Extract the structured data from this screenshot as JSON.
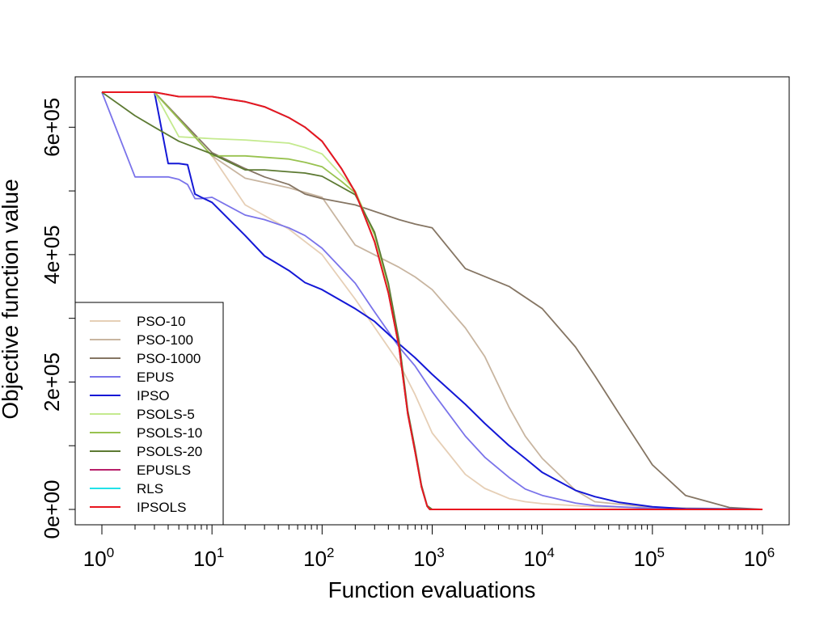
{
  "chart_data": {
    "type": "line",
    "title": "",
    "xlabel": "Function evaluations",
    "ylabel": "Objective function value",
    "xscale": "log10",
    "xlim": [
      1,
      1000000
    ],
    "ylim": [
      0,
      655000
    ],
    "xticks": [
      {
        "base": "10",
        "exp": "0",
        "value": 1
      },
      {
        "base": "10",
        "exp": "1",
        "value": 10
      },
      {
        "base": "10",
        "exp": "2",
        "value": 100
      },
      {
        "base": "10",
        "exp": "3",
        "value": 1000
      },
      {
        "base": "10",
        "exp": "4",
        "value": 10000
      },
      {
        "base": "10",
        "exp": "5",
        "value": 100000
      },
      {
        "base": "10",
        "exp": "6",
        "value": 1000000
      }
    ],
    "yticks": [
      {
        "label": "0e+00",
        "value": 0
      },
      {
        "label": "2e+05",
        "value": 200000
      },
      {
        "label": "4e+05",
        "value": 400000
      },
      {
        "label": "6e+05",
        "value": 600000
      }
    ],
    "yminor": [
      100000,
      300000,
      500000
    ],
    "legend_position": "bottom-left",
    "series": [
      {
        "name": "PSO-10",
        "color": "#e6cfb6",
        "x": [
          1,
          3,
          10,
          20,
          50,
          100,
          200,
          500,
          700,
          1000,
          2000,
          3000,
          5000,
          7000,
          10000,
          30000,
          100000,
          1000000
        ],
        "y": [
          655000,
          655000,
          555000,
          478000,
          440000,
          400000,
          330000,
          230000,
          180000,
          120000,
          55000,
          33000,
          17000,
          12000,
          9000,
          4000,
          2000,
          0
        ]
      },
      {
        "name": "PSO-100",
        "color": "#c8b5a0",
        "x": [
          1,
          3,
          10,
          20,
          50,
          100,
          200,
          500,
          700,
          1000,
          2000,
          3000,
          5000,
          7000,
          10000,
          20000,
          30000,
          100000,
          1000000
        ],
        "y": [
          655000,
          655000,
          555000,
          520000,
          505000,
          490000,
          415000,
          380000,
          365000,
          345000,
          285000,
          240000,
          160000,
          115000,
          80000,
          30000,
          12000,
          3000,
          0
        ]
      },
      {
        "name": "PSO-1000",
        "color": "#857563",
        "x": [
          1,
          3,
          10,
          20,
          30,
          50,
          70,
          100,
          200,
          500,
          700,
          1000,
          2000,
          5000,
          10000,
          20000,
          30000,
          50000,
          100000,
          200000,
          500000,
          1000000
        ],
        "y": [
          655000,
          655000,
          560000,
          535000,
          522000,
          510000,
          495000,
          488000,
          478000,
          455000,
          448000,
          442000,
          378000,
          350000,
          315000,
          255000,
          210000,
          150000,
          70000,
          22000,
          3000,
          0
        ]
      },
      {
        "name": "EPUS",
        "color": "#7a73ea",
        "x": [
          1,
          2,
          3,
          4,
          5,
          6,
          7,
          8,
          10,
          20,
          30,
          50,
          70,
          100,
          200,
          300,
          500,
          700,
          1000,
          2000,
          3000,
          5000,
          7000,
          10000,
          20000,
          30000,
          100000,
          1000000
        ],
        "y": [
          655000,
          522000,
          522000,
          522000,
          518000,
          510000,
          488000,
          488000,
          490000,
          462000,
          455000,
          442000,
          430000,
          410000,
          355000,
          310000,
          255000,
          225000,
          185000,
          115000,
          82000,
          50000,
          32000,
          22000,
          10000,
          6000,
          1500,
          0
        ]
      },
      {
        "name": "IPSO",
        "color": "#1418d6",
        "x": [
          1,
          2,
          3,
          4,
          5,
          6,
          7,
          8,
          10,
          20,
          30,
          50,
          70,
          100,
          200,
          300,
          500,
          700,
          1000,
          2000,
          3000,
          5000,
          7000,
          10000,
          20000,
          30000,
          50000,
          100000,
          200000,
          1000000
        ],
        "y": [
          655000,
          655000,
          655000,
          543000,
          543000,
          541000,
          495000,
          490000,
          482000,
          430000,
          398000,
          375000,
          356000,
          345000,
          315000,
          295000,
          260000,
          238000,
          212000,
          165000,
          135000,
          100000,
          80000,
          58000,
          30000,
          20000,
          11000,
          4000,
          1000,
          0
        ]
      },
      {
        "name": "PSOLS-5",
        "color": "#c4ea8e",
        "x": [
          1,
          3,
          5,
          10,
          20,
          50,
          70,
          100,
          150,
          200,
          300,
          400,
          500,
          600,
          700,
          800,
          900,
          1000,
          1000000
        ],
        "y": [
          655000,
          655000,
          585000,
          582000,
          580000,
          575000,
          568000,
          558000,
          525000,
          500000,
          430000,
          350000,
          260000,
          150000,
          90000,
          35000,
          5000,
          0,
          0
        ]
      },
      {
        "name": "PSOLS-10",
        "color": "#98c24f",
        "x": [
          1,
          3,
          10,
          20,
          50,
          70,
          100,
          150,
          200,
          300,
          400,
          500,
          600,
          700,
          800,
          900,
          1000,
          1000000
        ],
        "y": [
          655000,
          655000,
          555000,
          555000,
          550000,
          545000,
          538000,
          515000,
          497000,
          432000,
          352000,
          262000,
          152000,
          92000,
          36000,
          5000,
          0,
          0
        ]
      },
      {
        "name": "PSOLS-20",
        "color": "#5d7a33",
        "x": [
          1,
          2,
          3,
          5,
          10,
          20,
          30,
          50,
          70,
          100,
          200,
          300,
          400,
          500,
          600,
          700,
          800,
          900,
          1000,
          1000000
        ],
        "y": [
          655000,
          618000,
          600000,
          578000,
          558000,
          533000,
          533000,
          530000,
          528000,
          523000,
          494000,
          435000,
          355000,
          265000,
          155000,
          95000,
          38000,
          6000,
          0,
          0
        ]
      },
      {
        "name": "EPUSLS",
        "color": "#b8206a",
        "x": [
          1,
          3,
          5,
          10,
          20,
          30,
          50,
          70,
          100,
          150,
          200,
          300,
          400,
          500,
          600,
          700,
          800,
          900,
          950,
          1000000
        ],
        "y": [
          655000,
          655000,
          648000,
          648000,
          640000,
          632000,
          615000,
          600000,
          578000,
          535000,
          498000,
          420000,
          340000,
          255000,
          150000,
          90000,
          35000,
          5000,
          0,
          0
        ]
      },
      {
        "name": "RLS",
        "color": "#22e2e8",
        "x": [
          1,
          3,
          5,
          10,
          20,
          30,
          50,
          70,
          100,
          150,
          200,
          300,
          400,
          500,
          600,
          700,
          800,
          900,
          950,
          1000000
        ],
        "y": [
          655000,
          655000,
          648000,
          648000,
          640000,
          632000,
          615000,
          600000,
          578000,
          535000,
          498000,
          420000,
          340000,
          255000,
          150000,
          90000,
          35000,
          5000,
          0,
          0
        ]
      },
      {
        "name": "IPSOLS",
        "color": "#e8161f",
        "x": [
          1,
          3,
          5,
          10,
          20,
          30,
          50,
          70,
          100,
          150,
          200,
          300,
          400,
          500,
          600,
          700,
          800,
          900,
          950,
          1000000
        ],
        "y": [
          655000,
          655000,
          648000,
          648000,
          640000,
          632000,
          615000,
          600000,
          578000,
          535000,
          498000,
          420000,
          340000,
          255000,
          150000,
          90000,
          35000,
          5000,
          0,
          0
        ]
      }
    ]
  }
}
